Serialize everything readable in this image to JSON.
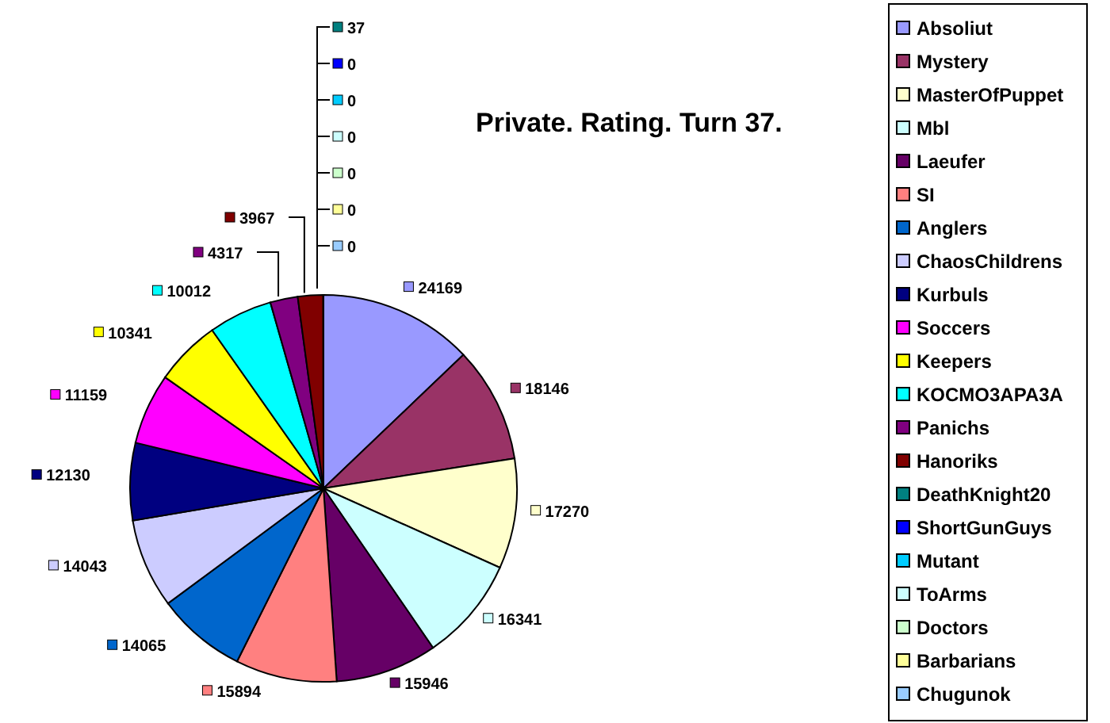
{
  "chart_data": {
    "type": "pie",
    "title": "Private. Rating. Turn 37.",
    "categories": [
      "Absoliut",
      "Mystery",
      "MasterOfPuppet",
      "Mbl",
      "Laeufer",
      "SI",
      "Anglers",
      "ChaosChildrens",
      "Kurbuls",
      "Soccers",
      "Keepers",
      "KOCMO3APA3A",
      "Panichs",
      "Hanoriks",
      "DeathKnight20",
      "ShortGunGuys",
      "Mutant",
      "ToArms",
      "Doctors",
      "Barbarians",
      "Chugunok"
    ],
    "values": [
      24169,
      18146,
      17270,
      16341,
      15946,
      15894,
      14065,
      14043,
      12130,
      11159,
      10341,
      10012,
      4317,
      3967,
      37,
      0,
      0,
      0,
      0,
      0,
      0
    ],
    "colors": [
      "#9999ff",
      "#993366",
      "#ffffcc",
      "#ccffff",
      "#660066",
      "#ff8080",
      "#0066cc",
      "#ccccff",
      "#000080",
      "#ff00ff",
      "#ffff00",
      "#00ffff",
      "#800080",
      "#800000",
      "#008080",
      "#0000ff",
      "#00ccff",
      "#ccffff",
      "#ccffcc",
      "#ffff99",
      "#99ccff"
    ],
    "value_labels": [
      "24169",
      "18146",
      "17270",
      "16341",
      "15946",
      "15894",
      "14065",
      "14043",
      "12130",
      "11159",
      "10341",
      "10012",
      "4317",
      "3967",
      "37",
      "0",
      "0",
      "0",
      "0",
      "0",
      "0"
    ],
    "legend": "right"
  }
}
